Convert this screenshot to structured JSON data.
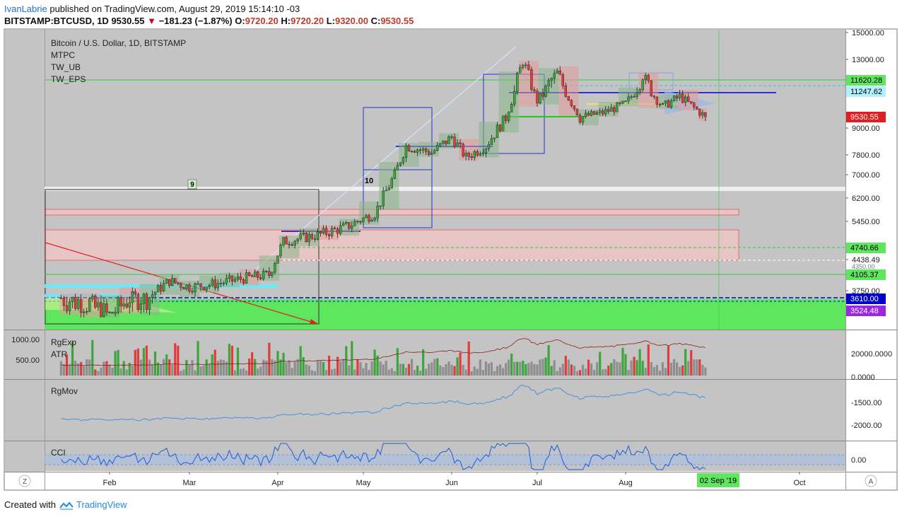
{
  "header": {
    "user": "IvanLabrie",
    "published": "published on TradingView.com, August 29, 2019 15:14:10 -03",
    "symbol": "BITSTAMP:BTCUSD, 1D",
    "last": "9530.55",
    "change": "−181.23 (−1.87%)",
    "o_label": "O:",
    "o": "9720.20",
    "h_label": "H:",
    "h": "9720.20",
    "l_label": "L:",
    "l": "9320.00",
    "c_label": "C:",
    "c": "9530.55"
  },
  "legend": {
    "title": "Bitcoin / U.S. Dollar, 1D, BITSTAMP",
    "studies": [
      "MTPC",
      "TW_UB",
      "TW_EPS"
    ]
  },
  "annotations": {
    "wave9": "9",
    "wave10": "10"
  },
  "panes": {
    "volume": {
      "labels": [
        "RgExp",
        "ATR"
      ]
    },
    "rgmov": {
      "label": "RgMov"
    },
    "cci": {
      "label": "CCI"
    }
  },
  "footer": {
    "created_with": "Created with",
    "brand": "TradingView"
  },
  "colors": {
    "bull": "#3ca63c",
    "bear": "#e23b3b",
    "pane_bg": "#c4c4c4",
    "green_zone": "#5ee65e",
    "blue_level": "#0000cc"
  },
  "chart_data": {
    "type": "candlestick",
    "x_axis": {
      "ticks": [
        "Feb",
        "Mar",
        "Apr",
        "May",
        "Jun",
        "Jul",
        "Aug",
        "Oct"
      ],
      "cursor_label": "02 Sep '19"
    },
    "price_axis": {
      "ticks": [
        "15000.00",
        "13000.00",
        "11620.28",
        "11247.62",
        "9530.55",
        "9000.00",
        "7800.00",
        "7000.00",
        "6200.00",
        "5450.00",
        "4740.66",
        "4438.49",
        "4105.37",
        "3750.00",
        "3610.00",
        "3524.48"
      ],
      "badges": [
        {
          "label": "11620.28",
          "color": "#5ee65e",
          "text_color": "#000000"
        },
        {
          "label": "11247.62",
          "color": "#b2f0ff",
          "text_color": "#000000"
        },
        {
          "label": "9530.55",
          "color": "#e02020",
          "text_color": "#ffffff"
        },
        {
          "label": "4740.66",
          "color": "#5ee65e",
          "text_color": "#000000"
        },
        {
          "label": "4105.37",
          "color": "#5ee65e",
          "text_color": "#000000"
        },
        {
          "label": "3610.00",
          "color": "#0000cc",
          "text_color": "#ffffff"
        },
        {
          "label": "3524.48",
          "color": "#9b27e0",
          "text_color": "#ffffff"
        }
      ],
      "partial_tick": "4350.00"
    },
    "series": {
      "name": "BTCUSD",
      "close_path": [
        [
          "Jan-15",
          3620
        ],
        [
          "Jan-25",
          3570
        ],
        [
          "Feb-01",
          3460
        ],
        [
          "Feb-08",
          3630
        ],
        [
          "Feb-15",
          3640
        ],
        [
          "Feb-22",
          3960
        ],
        [
          "Mar-01",
          3830
        ],
        [
          "Mar-10",
          3900
        ],
        [
          "Mar-20",
          4020
        ],
        [
          "Mar-29",
          4100
        ],
        [
          "Apr-03",
          4900
        ],
        [
          "Apr-15",
          5080
        ],
        [
          "Apr-25",
          5300
        ],
        [
          "May-05",
          5700
        ],
        [
          "May-12",
          7000
        ],
        [
          "May-16",
          8200
        ],
        [
          "May-25",
          7900
        ],
        [
          "Jun-01",
          8600
        ],
        [
          "Jun-06",
          7700
        ],
        [
          "Jun-13",
          8200
        ],
        [
          "Jun-20",
          9500
        ],
        [
          "Jun-26",
          12900
        ],
        [
          "Jul-01",
          10600
        ],
        [
          "Jul-08",
          12100
        ],
        [
          "Jul-16",
          9500
        ],
        [
          "Jul-24",
          9800
        ],
        [
          "Aug-01",
          10400
        ],
        [
          "Aug-07",
          11900
        ],
        [
          "Aug-14",
          10200
        ],
        [
          "Aug-20",
          10900
        ],
        [
          "Aug-29",
          9530.55
        ]
      ]
    },
    "horizontal_levels": [
      11620.28,
      11247.62,
      4740.66,
      4438.49,
      4105.37,
      3610.0,
      3524.48
    ],
    "volume_pane": {
      "ticks": [
        "1000.00",
        "500.00"
      ],
      "right_ticks": [
        "20000.0000",
        "0.0000"
      ]
    },
    "rgmov_pane": {
      "ticks": [
        "-1500.00",
        "-2000.00"
      ]
    },
    "cci_pane": {
      "ticks": [
        "0.00"
      ]
    }
  }
}
